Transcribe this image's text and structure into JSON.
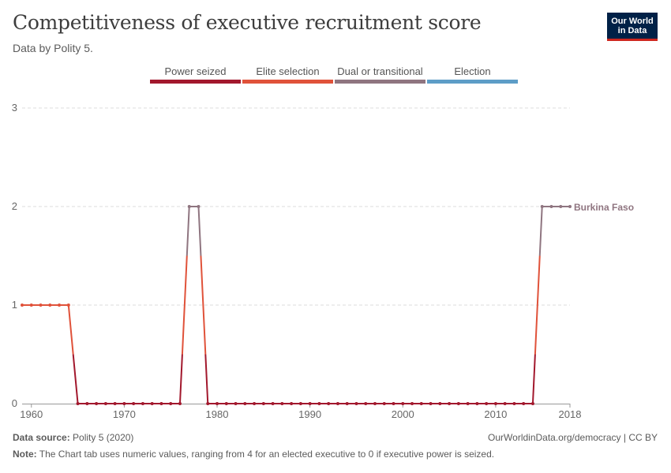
{
  "header": {
    "title": "Competitiveness of executive recruitment score",
    "subtitle": "Data by Polity 5.",
    "logo_line1": "Our World",
    "logo_line2": "in Data"
  },
  "footer": {
    "source_label": "Data source:",
    "source_value": "Polity 5 (2020)",
    "url": "OurWorldinData.org/democracy | CC BY",
    "note_label": "Note:",
    "note_text": "The Chart tab uses numeric values, ranging from 4 for an elected executive to 0 if executive power is seized."
  },
  "colors": {
    "power_seized": "#a2182d",
    "elite_selection": "#e0523a",
    "dual": "#8f7580",
    "election": "#5d9dc7",
    "grid": "#dddddd",
    "axis_text": "#666666"
  },
  "chart_data": {
    "type": "line",
    "legend": [
      {
        "label": "Power seized",
        "color": "#a2182d"
      },
      {
        "label": "Elite selection",
        "color": "#e0523a"
      },
      {
        "label": "Dual or transitional",
        "color": "#8f7580"
      },
      {
        "label": "Election",
        "color": "#5d9dc7"
      }
    ],
    "x_ticks": [
      1960,
      1970,
      1980,
      1990,
      2000,
      2010,
      2018
    ],
    "y_ticks": [
      0,
      1,
      2,
      3
    ],
    "xlim": [
      1959,
      2018
    ],
    "ylim": [
      0,
      3
    ],
    "series": [
      {
        "name": "Burkina Faso",
        "x": [
          1959,
          1960,
          1961,
          1962,
          1963,
          1964,
          1965,
          1966,
          1967,
          1968,
          1969,
          1970,
          1971,
          1972,
          1973,
          1974,
          1975,
          1976,
          1977,
          1978,
          1979,
          1980,
          1981,
          1982,
          1983,
          1984,
          1985,
          1986,
          1987,
          1988,
          1989,
          1990,
          1991,
          1992,
          1993,
          1994,
          1995,
          1996,
          1997,
          1998,
          1999,
          2000,
          2001,
          2002,
          2003,
          2004,
          2005,
          2006,
          2007,
          2008,
          2009,
          2010,
          2011,
          2012,
          2013,
          2014,
          2015,
          2016,
          2017,
          2018
        ],
        "values": [
          1,
          1,
          1,
          1,
          1,
          1,
          0,
          0,
          0,
          0,
          0,
          0,
          0,
          0,
          0,
          0,
          0,
          0,
          2,
          2,
          0,
          0,
          0,
          0,
          0,
          0,
          0,
          0,
          0,
          0,
          0,
          0,
          0,
          0,
          0,
          0,
          0,
          0,
          0,
          0,
          0,
          0,
          0,
          0,
          0,
          0,
          0,
          0,
          0,
          0,
          0,
          0,
          0,
          0,
          0,
          0,
          2,
          2,
          2,
          2
        ]
      }
    ]
  }
}
